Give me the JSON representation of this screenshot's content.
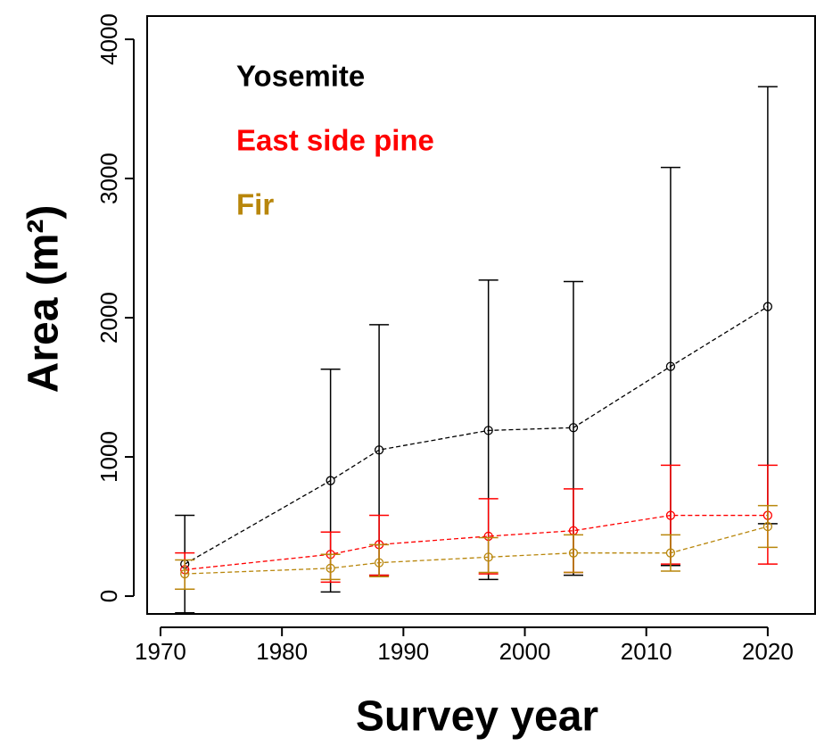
{
  "chart_data": {
    "type": "errorbar-line",
    "x_label": "Survey year",
    "y_label": "Area (m²)",
    "x": [
      1972,
      1984,
      1988,
      1997,
      2004,
      2012,
      2020
    ],
    "xlim": [
      1968.9,
      2023.9
    ],
    "ylim": [
      -128,
      4167
    ],
    "xticks": [
      1970,
      1980,
      1990,
      2000,
      2010,
      2020
    ],
    "yticks": [
      0,
      1000,
      2000,
      3000,
      4000
    ],
    "series": [
      {
        "name": "Yosemite",
        "color": "#000000",
        "values": [
          230,
          830,
          1050,
          1190,
          1210,
          1650,
          2080
        ],
        "lower": [
          -120,
          30,
          150,
          120,
          150,
          220,
          520
        ],
        "upper": [
          580,
          1630,
          1950,
          2270,
          2260,
          3080,
          3660
        ]
      },
      {
        "name": "East side pine",
        "color": "#ff0000",
        "values": [
          190,
          300,
          370,
          430,
          470,
          580,
          580
        ],
        "lower": [
          50,
          100,
          150,
          160,
          170,
          230,
          230
        ],
        "upper": [
          310,
          460,
          580,
          700,
          770,
          940,
          940
        ]
      },
      {
        "name": "Fir",
        "color": "#b8860b",
        "values": [
          160,
          200,
          240,
          280,
          310,
          310,
          500
        ],
        "lower": [
          50,
          120,
          140,
          170,
          170,
          180,
          350
        ],
        "upper": [
          260,
          300,
          370,
          420,
          440,
          440,
          650
        ]
      }
    ]
  }
}
